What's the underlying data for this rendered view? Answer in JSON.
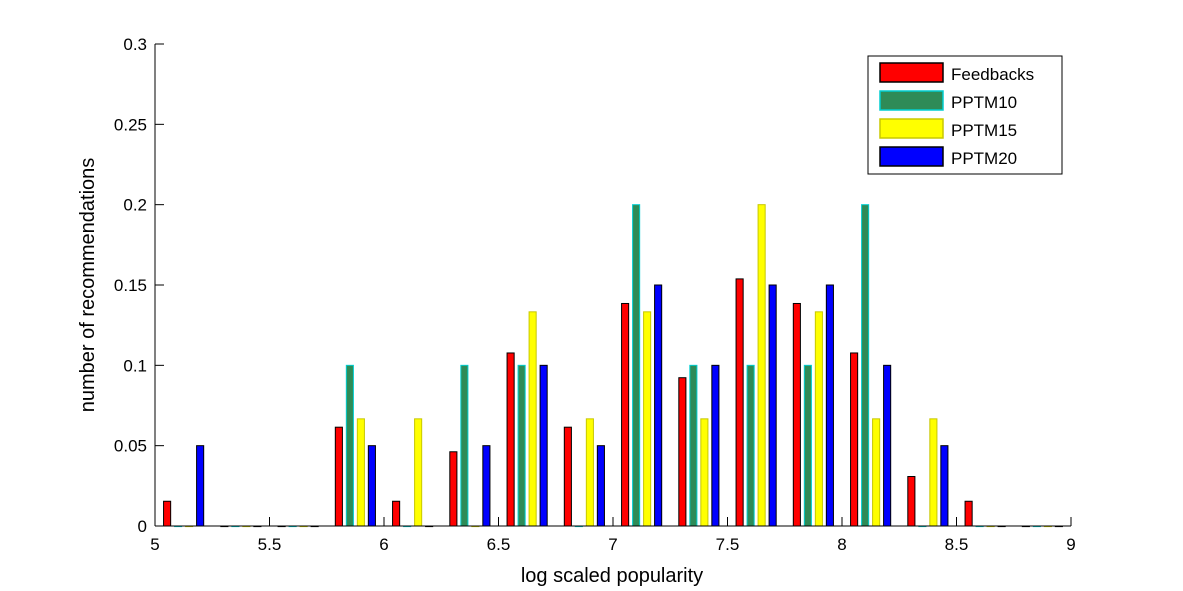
{
  "chart_data": {
    "type": "bar",
    "xlabel": "log scaled popularity",
    "ylabel": "number of recommendations",
    "xlim": [
      5,
      9
    ],
    "ylim": [
      0,
      0.3
    ],
    "xticks": [
      "5",
      "5.5",
      "6",
      "6.5",
      "7",
      "7.5",
      "8",
      "8.5",
      "9"
    ],
    "yticks": [
      "0",
      "0.05",
      "0.1",
      "0.15",
      "0.2",
      "0.25",
      "0.3"
    ],
    "legend_position": "top-right",
    "grid": false,
    "bin_centers": [
      5.125,
      5.375,
      5.625,
      5.875,
      6.125,
      6.375,
      6.625,
      6.875,
      7.125,
      7.375,
      7.625,
      7.875,
      8.125,
      8.375,
      8.625,
      8.875
    ],
    "series": [
      {
        "name": "Feedbacks",
        "color": "#ff0000",
        "edge": "#000000",
        "values": [
          0.0154,
          0,
          0,
          0.0615,
          0.0154,
          0.0462,
          0.1077,
          0.0615,
          0.1385,
          0.0923,
          0.1538,
          0.1385,
          0.1077,
          0.0308,
          0.0154,
          0
        ]
      },
      {
        "name": "PPTM10",
        "color": "#2e8b57",
        "edge": "#00ced1",
        "values": [
          0,
          0,
          0,
          0.1,
          0,
          0.1,
          0.1,
          0,
          0.2,
          0.1,
          0.1,
          0.1,
          0.2,
          0,
          0,
          0
        ]
      },
      {
        "name": "PPTM15",
        "color": "#ffff00",
        "edge": "#c8c800",
        "values": [
          0,
          0,
          0,
          0.0667,
          0.0667,
          0,
          0.1333,
          0.0667,
          0.1333,
          0.0667,
          0.2,
          0.1333,
          0.0667,
          0.0667,
          0,
          0
        ]
      },
      {
        "name": "PPTM20",
        "color": "#0000ff",
        "edge": "#000000",
        "values": [
          0.05,
          0,
          0,
          0.05,
          0,
          0.05,
          0.1,
          0.05,
          0.15,
          0.1,
          0.15,
          0.15,
          0.1,
          0.05,
          0,
          0
        ]
      }
    ]
  }
}
